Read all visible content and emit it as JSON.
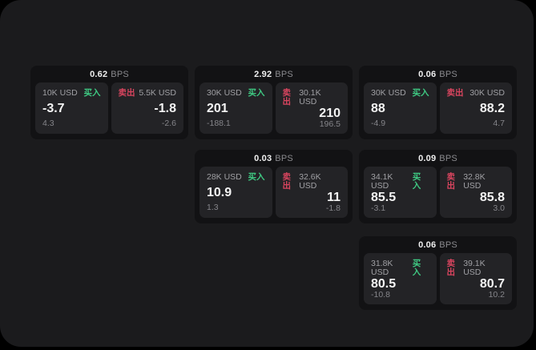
{
  "labels": {
    "buy": "买入",
    "sell": "卖出",
    "bps": "BPS"
  },
  "colors": {
    "buy": "#3fca83",
    "sell": "#d9455f",
    "panel_bg": "#1b1b1d",
    "card_bg": "#121214",
    "tile_bg": "#232326"
  },
  "cards": [
    {
      "bps": "0.62",
      "buy": {
        "amount": "10K USD",
        "price": "-3.7",
        "sub": "4.3"
      },
      "sell": {
        "amount": "5.5K USD",
        "price": "-1.8",
        "sub": "-2.6"
      }
    },
    {
      "bps": "2.92",
      "buy": {
        "amount": "30K USD",
        "price": "201",
        "sub": "-188.1"
      },
      "sell": {
        "amount": "30.1K USD",
        "price": "210",
        "sub": "196.5"
      }
    },
    {
      "bps": "0.06",
      "buy": {
        "amount": "30K USD",
        "price": "88",
        "sub": "-4.9"
      },
      "sell": {
        "amount": "30K USD",
        "price": "88.2",
        "sub": "4.7"
      }
    },
    {
      "bps": "0.03",
      "buy": {
        "amount": "28K USD",
        "price": "10.9",
        "sub": "1.3"
      },
      "sell": {
        "amount": "32.6K USD",
        "price": "11",
        "sub": "-1.8"
      }
    },
    {
      "bps": "0.09",
      "buy": {
        "amount": "34.1K USD",
        "price": "85.5",
        "sub": "-3.1"
      },
      "sell": {
        "amount": "32.8K USD",
        "price": "85.8",
        "sub": "3.0"
      }
    },
    {
      "bps": "0.06",
      "buy": {
        "amount": "31.8K USD",
        "price": "80.5",
        "sub": "-10.8"
      },
      "sell": {
        "amount": "39.1K USD",
        "price": "80.7",
        "sub": "10.2"
      }
    }
  ]
}
